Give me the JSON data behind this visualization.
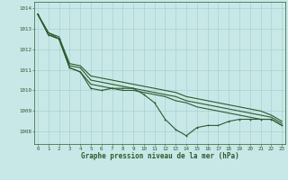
{
  "title": "Graphe pression niveau de la mer (hPa)",
  "hours": [
    0,
    1,
    2,
    3,
    4,
    5,
    6,
    7,
    8,
    9,
    10,
    11,
    12,
    13,
    14,
    15,
    16,
    17,
    18,
    19,
    20,
    21,
    22,
    23
  ],
  "ylim": [
    1007.4,
    1014.3
  ],
  "yticks": [
    1008,
    1009,
    1010,
    1011,
    1012,
    1013,
    1014
  ],
  "bg_color": "#c8e8e8",
  "grid_color": "#a0cccc",
  "line_color": "#2d5a2d",
  "series_main": [
    1013.7,
    1012.7,
    1012.5,
    1011.1,
    1010.9,
    1010.1,
    1010.0,
    1010.1,
    1010.1,
    1010.1,
    1009.8,
    1009.4,
    1008.6,
    1008.1,
    1007.8,
    1008.2,
    1008.3,
    1008.3,
    1008.5,
    1008.6,
    1008.6,
    1008.6,
    1008.6,
    1008.3
  ],
  "series_a": [
    1013.7,
    1012.7,
    1012.5,
    1011.1,
    1010.9,
    1010.3,
    1010.2,
    1010.1,
    1010.0,
    1010.0,
    1009.9,
    1009.8,
    1009.7,
    1009.5,
    1009.4,
    1009.2,
    1009.1,
    1009.0,
    1008.9,
    1008.8,
    1008.7,
    1008.6,
    1008.6,
    1008.3
  ],
  "series_b": [
    1013.7,
    1012.8,
    1012.5,
    1011.2,
    1011.1,
    1010.5,
    1010.4,
    1010.3,
    1010.2,
    1010.1,
    1010.0,
    1009.9,
    1009.8,
    1009.7,
    1009.5,
    1009.4,
    1009.3,
    1009.2,
    1009.1,
    1009.0,
    1008.9,
    1008.8,
    1008.7,
    1008.4
  ],
  "series_c": [
    1013.7,
    1012.8,
    1012.6,
    1011.3,
    1011.2,
    1010.7,
    1010.6,
    1010.5,
    1010.4,
    1010.3,
    1010.2,
    1010.1,
    1010.0,
    1009.9,
    1009.7,
    1009.6,
    1009.5,
    1009.4,
    1009.3,
    1009.2,
    1009.1,
    1009.0,
    1008.8,
    1008.5
  ],
  "lw_main": 0.8,
  "lw_other": 0.8,
  "marker_size": 1.8,
  "title_fontsize": 5.5,
  "tick_fontsize": 4.2
}
